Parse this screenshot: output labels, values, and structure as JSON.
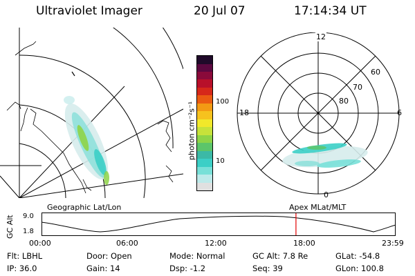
{
  "header": {
    "instrument": "Ultraviolet Imager",
    "date": "20 Jul 07",
    "time": "17:14:34 UT"
  },
  "map_left": {
    "label": "Geographic Lat/Lon"
  },
  "map_right": {
    "label": "Apex MLat/MLT",
    "hour_labels": {
      "top": "12",
      "left": "18",
      "right": "6",
      "bottom": "0"
    },
    "lat_labels": [
      "80",
      "70",
      "60"
    ]
  },
  "colorbar": {
    "unit_label": "photon cm⁻²s⁻¹",
    "ticks": [
      "100",
      "10"
    ],
    "colors": [
      "#e0e0e0",
      "#bdeaea",
      "#78e0d8",
      "#3ccfc6",
      "#3cb9a6",
      "#5cc56a",
      "#8ed447",
      "#c7e23a",
      "#f2e82a",
      "#f6c21e",
      "#f39a14",
      "#ea5b12",
      "#d6281a",
      "#b8102a",
      "#8a0a3a",
      "#5c0840",
      "#200a2a"
    ]
  },
  "timeline": {
    "axis_label": "GC Alt",
    "y_ticks": [
      "9.0",
      "1.8"
    ],
    "x_ticks": [
      "00:00",
      "06:00",
      "12:00",
      "18:00",
      "23:59"
    ],
    "marker_time": "17:14",
    "marker_color": "#e00000"
  },
  "info": {
    "row1": [
      {
        "key": "Flt:",
        "value": "LBHL"
      },
      {
        "key": "Door:",
        "value": "Open"
      },
      {
        "key": "Mode:",
        "value": "Normal"
      },
      {
        "key": "GC Alt:",
        "value": "7.8 Re"
      },
      {
        "key": "GLat:",
        "value": "-54.8"
      }
    ],
    "row2": [
      {
        "key": "IP:",
        "value": "36.0"
      },
      {
        "key": "Gain:",
        "value": "14"
      },
      {
        "key": "Dsp:",
        "value": "-1.2"
      },
      {
        "key": "Seq:",
        "value": "39"
      },
      {
        "key": "GLon:",
        "value": "100.8"
      }
    ]
  }
}
